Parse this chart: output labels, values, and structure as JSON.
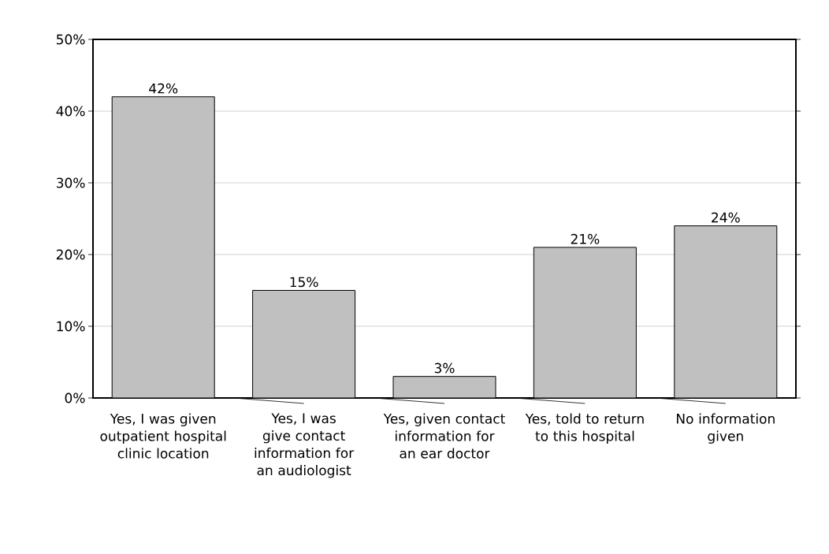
{
  "chart_data": {
    "type": "bar",
    "categories": [
      "Yes, I was given outpatient hospital clinic location",
      "Yes, I was give contact information for an audiologist",
      "Yes, given contact information for an ear doctor",
      "Yes, told to return to this hospital",
      "No information given"
    ],
    "values": [
      42,
      15,
      3,
      21,
      24
    ],
    "value_labels": [
      "42%",
      "15%",
      "3%",
      "21%",
      "24%"
    ],
    "color": "#c0c0c0",
    "ylim": [
      0,
      50
    ],
    "yticks": [
      {
        "value": 0,
        "label": "0%"
      },
      {
        "value": 10,
        "label": "10%"
      },
      {
        "value": 20,
        "label": "20%"
      },
      {
        "value": 30,
        "label": "30%"
      },
      {
        "value": 40,
        "label": "40%"
      },
      {
        "value": 50,
        "label": "50%"
      }
    ],
    "grid": "y"
  }
}
